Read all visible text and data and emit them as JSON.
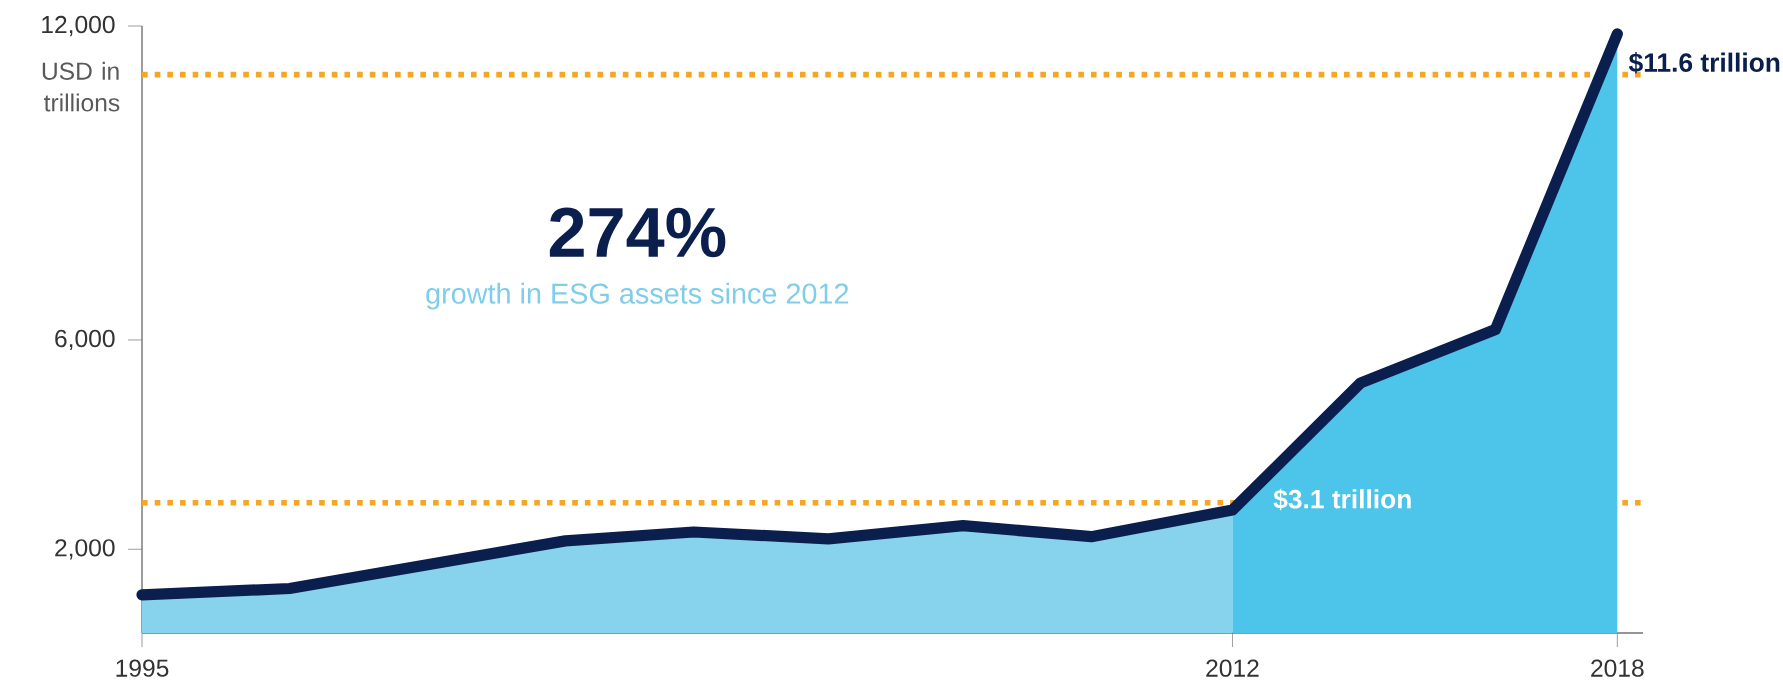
{
  "chart_data": {
    "type": "area",
    "ylabel": "USD in trillions",
    "x": [
      1995,
      1997.3,
      2001.6,
      2003.6,
      2005.7,
      2007.8,
      2009.8,
      2012,
      2014,
      2016.1,
      2018
    ],
    "series": [
      {
        "color": "#87d3ee",
        "x": [
          1995,
          1997.3,
          2001.6,
          2003.6,
          2005.7,
          2007.8,
          2009.8,
          2012
        ],
        "values": [
          1130,
          1250,
          2160,
          2330,
          2200,
          2450,
          2240,
          2750
        ]
      },
      {
        "color": "#4dc4ea",
        "x": [
          2012,
          2014,
          2016.1,
          2018
        ],
        "values": [
          2750,
          5180,
          6200,
          11850
        ]
      },
      {
        "type": "line",
        "color": "#0b1f4e",
        "values": [
          1130,
          1250,
          2160,
          2330,
          2200,
          2450,
          2240,
          2750,
          5180,
          6200,
          11850
        ]
      }
    ],
    "xlim": [
      1995,
      2018.4
    ],
    "xticks": [
      1995,
      2012,
      2018
    ],
    "ylim": [
      400,
      12000
    ],
    "yticks": [
      {
        "value": 2000,
        "label": "2,000"
      },
      {
        "value": 6000,
        "label": "6,000"
      },
      {
        "value": 12000,
        "label": "12,000"
      }
    ],
    "ref_lines": [
      {
        "axis": "y",
        "value": 11070,
        "color": "#f5a623",
        "line_style": "dotted"
      },
      {
        "axis": "y",
        "value": 2890,
        "color": "#f5a623",
        "line_style": "dotted"
      }
    ],
    "annotations": [
      "274%",
      "growth in ESG assets since 2012",
      {
        "text": "$11.6 trillion",
        "x": 2018,
        "y": 11850
      },
      "$3.1 trillion"
    ],
    "grid": false
  }
}
